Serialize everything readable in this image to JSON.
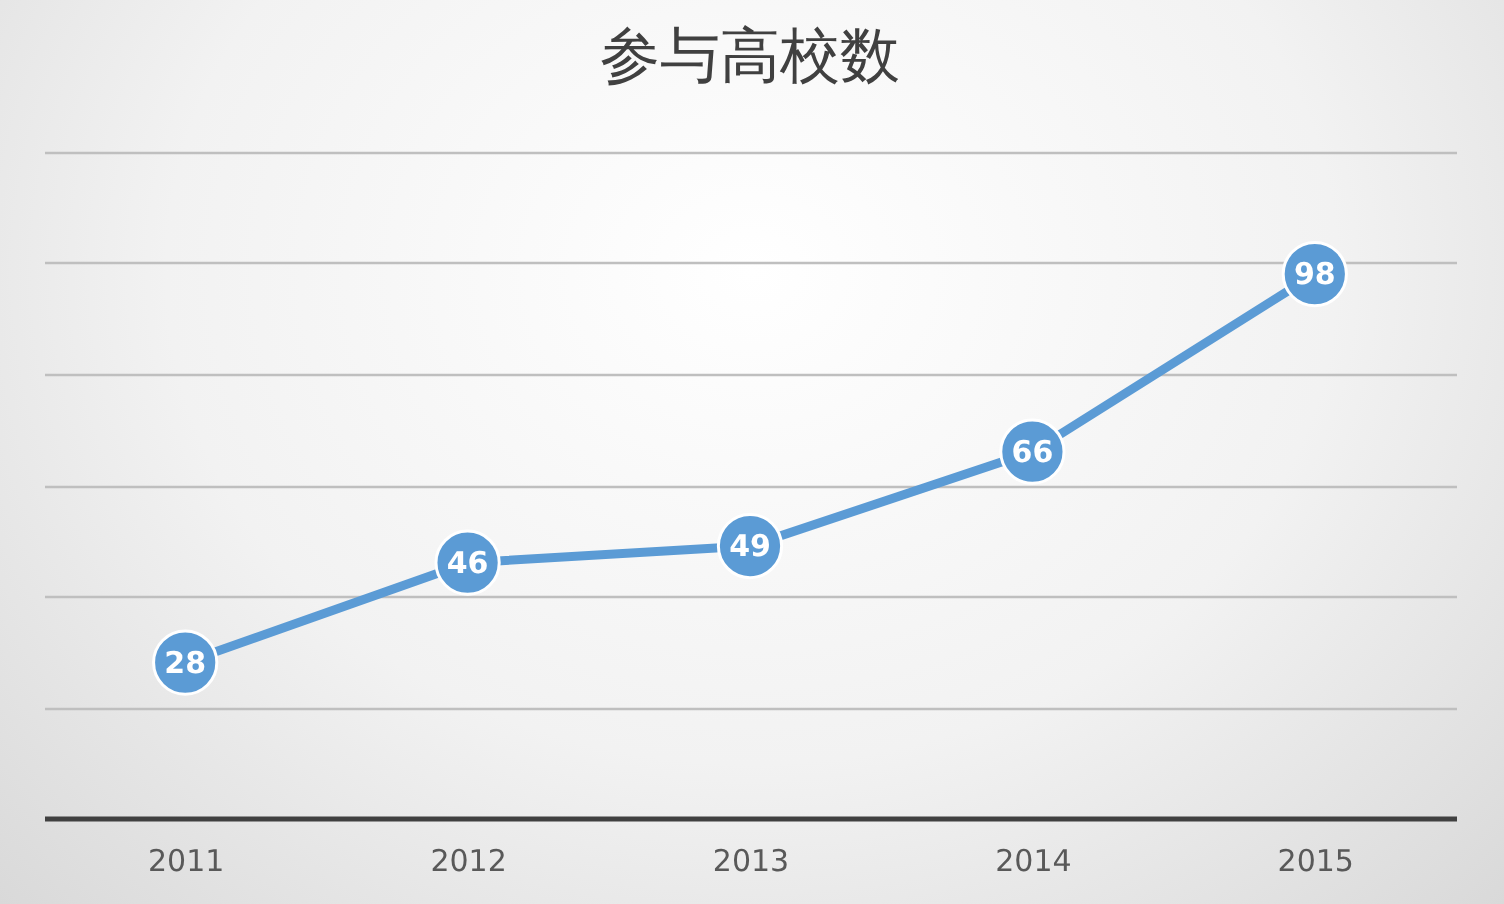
{
  "chart_data": {
    "type": "line",
    "title": "参与高校数",
    "categories": [
      "2011",
      "2012",
      "2013",
      "2014",
      "2015"
    ],
    "values": [
      28,
      46,
      49,
      66,
      98
    ],
    "color": "#5b9bd5",
    "ylim": [
      0,
      120
    ],
    "yticks": [
      {
        "value": 0,
        "label": null
      },
      {
        "value": 20,
        "label": null
      },
      {
        "value": 40,
        "label": null
      },
      {
        "value": 60,
        "label": null
      },
      {
        "value": 80,
        "label": null
      },
      {
        "value": 100,
        "label": null
      },
      {
        "value": 120,
        "label": null
      }
    ],
    "tick_labels": "x",
    "grid": "y",
    "marker": "circle",
    "line_style": "solid",
    "data_labels": true
  }
}
